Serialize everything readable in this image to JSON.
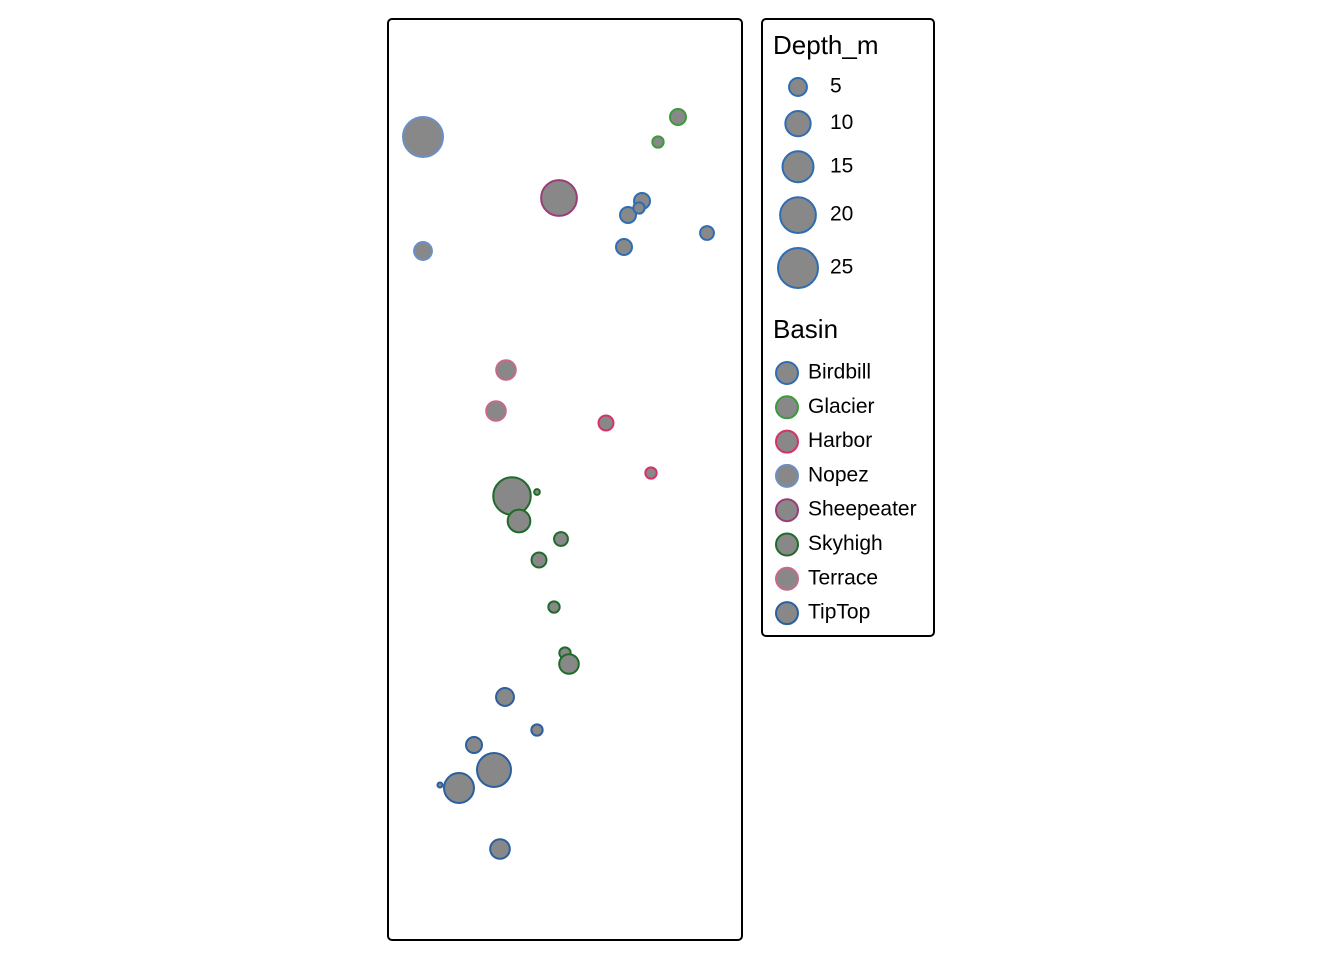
{
  "chart_data": {
    "type": "bubble",
    "xlim": [
      0,
      354
    ],
    "ylim": [
      0,
      921
    ],
    "fill": "#888888",
    "size_legend": {
      "title": "Depth_m",
      "values": [
        5,
        10,
        15,
        20,
        25
      ]
    },
    "color_legend_title": "Basin",
    "series": [
      {
        "name": "Birdbill",
        "color": "#2f6db3",
        "x": [
          254,
          240,
          251,
          236,
          319
        ],
        "y": [
          739,
          725,
          732,
          693,
          707
        ],
        "sizes": [
          4,
          4,
          2,
          4,
          3
        ]
      },
      {
        "name": "Glacier",
        "color": "#3c9a3c",
        "x": [
          290,
          270
        ],
        "y": [
          823,
          798
        ],
        "sizes": [
          4,
          2
        ]
      },
      {
        "name": "Harbor",
        "color": "#d8306a",
        "x": [
          218,
          263
        ],
        "y": [
          517,
          467
        ],
        "sizes": [
          3.5,
          2
        ]
      },
      {
        "name": "Nopez",
        "color": "#6b8fc8",
        "x": [
          35,
          35
        ],
        "y": [
          803,
          689
        ],
        "sizes": [
          25,
          5
        ]
      },
      {
        "name": "Sheepeater",
        "color": "#9b3c7a",
        "x": [
          171
        ],
        "y": [
          742
        ],
        "sizes": [
          20
        ]
      },
      {
        "name": "Skyhigh",
        "color": "#1f6b2a",
        "x": [
          124,
          149,
          131,
          173,
          151,
          166,
          177,
          181
        ],
        "y": [
          444,
          448,
          419,
          401,
          380,
          333,
          287,
          276
        ],
        "sizes": [
          22,
          0.5,
          8,
          3,
          3.5,
          2,
          2,
          6
        ]
      },
      {
        "name": "Terrace",
        "color": "#c86a86",
        "x": [
          118,
          108
        ],
        "y": [
          570,
          529
        ],
        "sizes": [
          6,
          6
        ]
      },
      {
        "name": "TipTop",
        "color": "#2a5fa0",
        "x": [
          117,
          149,
          86,
          106,
          52,
          71,
          112
        ],
        "y": [
          243,
          210,
          195,
          170,
          155,
          152,
          91
        ],
        "sizes": [
          5,
          2,
          4,
          18,
          0.4,
          14,
          6
        ]
      }
    ]
  }
}
